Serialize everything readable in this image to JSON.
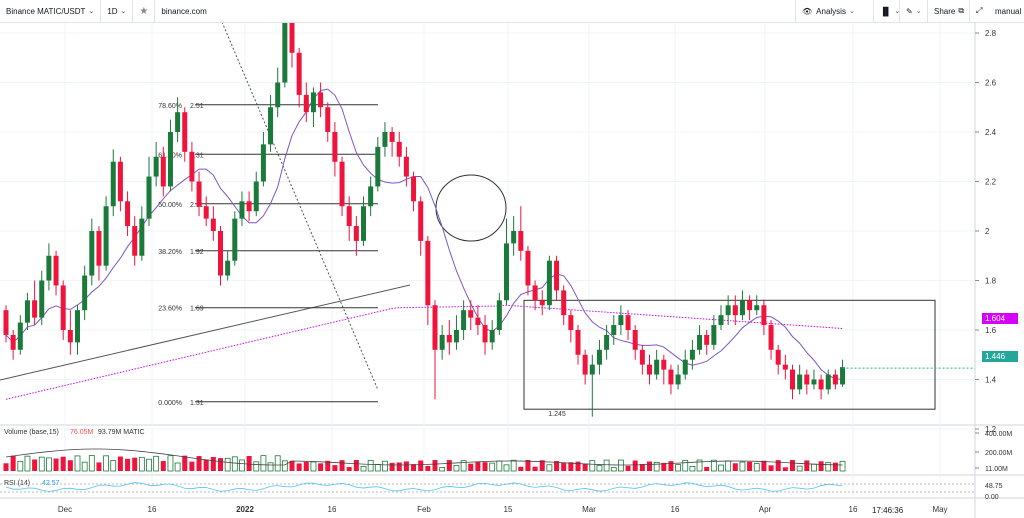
{
  "toolbar": {
    "symbol": "Binance MATIC/USDT",
    "interval": "1D",
    "star": "★",
    "domain": "binance.com",
    "analysis": "Analysis",
    "chart_type_icon": "candles",
    "draw_icon": "pencil",
    "share": "Share",
    "manual": "manual",
    "eye_icon": "👁",
    "expand_icon": "⤢"
  },
  "colors": {
    "up": "#26a69a",
    "down": "#ef5350",
    "up_dark": "#1b7a3a",
    "down_dark": "#f0143c",
    "sma": "#7e57c2",
    "sma_long": "#d500f9",
    "grid": "#f0f3fa",
    "fib_line": "#333333",
    "rsi": "#4fc3f7"
  },
  "chart_data": {
    "type": "line",
    "title": "Binance MATIC/USDT",
    "y_ticks": [
      "2.8",
      "2.6",
      "2.4",
      "2.2",
      "2",
      "1.8",
      "1.6",
      "1.4",
      "1.2"
    ],
    "x_ticks": [
      "Dec",
      "16",
      "2022",
      "16",
      "Feb",
      "15",
      "Mar",
      "16",
      "Apr",
      "16",
      "May"
    ],
    "fib_levels": [
      {
        "pct": "78.60%",
        "price": "2.51"
      },
      {
        "pct": "61.80%",
        "price": "2.31"
      },
      {
        "pct": "50.00%",
        "price": "2.11"
      },
      {
        "pct": "38.20%",
        "price": "1.92"
      },
      {
        "pct": "23.60%",
        "price": "1.69"
      },
      {
        "pct": "0.000%",
        "price": "1.31"
      }
    ],
    "low_label": "1.245",
    "last_price": "1.446",
    "sma_price": "1.604",
    "volume_label": "Volume (base,15)",
    "volume_val1": "76.05M",
    "volume_val2": "93.79M MATIC",
    "volume_ticks": [
      "400.00M",
      "200.00M",
      "11.00M"
    ],
    "rsi_label": "RSI (14)",
    "rsi_value": "42.57",
    "rsi_ticks": [
      "48.75",
      "0.00"
    ],
    "time": "17:46:36",
    "candles": [
      [
        1.68,
        1.58,
        1.7,
        1.55
      ],
      [
        1.58,
        1.52,
        1.6,
        1.48
      ],
      [
        1.52,
        1.63,
        1.66,
        1.5
      ],
      [
        1.63,
        1.72,
        1.75,
        1.6
      ],
      [
        1.72,
        1.65,
        1.8,
        1.62
      ],
      [
        1.65,
        1.8,
        1.84,
        1.62
      ],
      [
        1.8,
        1.9,
        1.95,
        1.76
      ],
      [
        1.9,
        1.78,
        1.92,
        1.74
      ],
      [
        1.78,
        1.6,
        1.8,
        1.56
      ],
      [
        1.6,
        1.55,
        1.68,
        1.5
      ],
      [
        1.55,
        1.68,
        1.7,
        1.5
      ],
      [
        1.68,
        1.82,
        1.86,
        1.64
      ],
      [
        1.82,
        2.0,
        2.05,
        1.78
      ],
      [
        2.0,
        1.86,
        2.02,
        1.8
      ],
      [
        1.86,
        2.1,
        2.14,
        1.84
      ],
      [
        2.1,
        2.28,
        2.33,
        2.06
      ],
      [
        2.28,
        2.12,
        2.3,
        2.08
      ],
      [
        2.12,
        2.02,
        2.16,
        1.98
      ],
      [
        2.02,
        1.9,
        2.06,
        1.86
      ],
      [
        1.9,
        2.05,
        2.1,
        1.88
      ],
      [
        2.05,
        2.22,
        2.3,
        2.02
      ],
      [
        2.22,
        2.3,
        2.36,
        2.18
      ],
      [
        2.3,
        2.18,
        2.34,
        2.14
      ],
      [
        2.18,
        2.4,
        2.45,
        2.16
      ],
      [
        2.4,
        2.48,
        2.54,
        2.36
      ],
      [
        2.48,
        2.32,
        2.5,
        2.28
      ],
      [
        2.32,
        2.2,
        2.36,
        2.16
      ],
      [
        2.2,
        2.1,
        2.24,
        2.06
      ],
      [
        2.1,
        2.05,
        2.14,
        2.02
      ],
      [
        2.05,
        2.0,
        2.1,
        1.96
      ],
      [
        2.0,
        1.82,
        2.02,
        1.78
      ],
      [
        1.82,
        1.88,
        1.92,
        1.8
      ],
      [
        1.88,
        2.05,
        2.08,
        1.86
      ],
      [
        2.05,
        2.12,
        2.16,
        2.02
      ],
      [
        2.12,
        2.08,
        2.16,
        2.04
      ],
      [
        2.08,
        2.2,
        2.24,
        2.06
      ],
      [
        2.2,
        2.35,
        2.4,
        2.18
      ],
      [
        2.35,
        2.5,
        2.55,
        2.32
      ],
      [
        2.5,
        2.6,
        2.66,
        2.46
      ],
      [
        2.6,
        2.85,
        2.9,
        2.58
      ],
      [
        2.85,
        2.72,
        2.88,
        2.66
      ],
      [
        2.72,
        2.55,
        2.74,
        2.5
      ],
      [
        2.55,
        2.48,
        2.6,
        2.44
      ],
      [
        2.48,
        2.56,
        2.58,
        2.42
      ],
      [
        2.56,
        2.5,
        2.6,
        2.46
      ],
      [
        2.5,
        2.4,
        2.52,
        2.36
      ],
      [
        2.4,
        2.28,
        2.44,
        2.22
      ],
      [
        2.28,
        2.1,
        2.3,
        2.06
      ],
      [
        2.1,
        2.02,
        2.14,
        1.96
      ],
      [
        2.02,
        1.96,
        2.06,
        1.9
      ],
      [
        1.96,
        2.1,
        2.14,
        1.94
      ],
      [
        2.1,
        2.18,
        2.22,
        2.06
      ],
      [
        2.18,
        2.34,
        2.38,
        2.16
      ],
      [
        2.34,
        2.4,
        2.44,
        2.3
      ],
      [
        2.4,
        2.36,
        2.42,
        2.3
      ],
      [
        2.36,
        2.3,
        2.4,
        2.26
      ],
      [
        2.3,
        2.22,
        2.34,
        2.18
      ],
      [
        2.22,
        2.12,
        2.24,
        2.08
      ],
      [
        2.12,
        1.96,
        2.14,
        1.9
      ],
      [
        1.96,
        1.7,
        1.98,
        1.62
      ],
      [
        1.7,
        1.52,
        1.72,
        1.32
      ],
      [
        1.52,
        1.58,
        1.62,
        1.48
      ],
      [
        1.58,
        1.55,
        1.64,
        1.5
      ],
      [
        1.55,
        1.6,
        1.66,
        1.52
      ],
      [
        1.6,
        1.68,
        1.72,
        1.56
      ],
      [
        1.68,
        1.65,
        1.72,
        1.6
      ],
      [
        1.65,
        1.62,
        1.7,
        1.58
      ],
      [
        1.62,
        1.55,
        1.66,
        1.5
      ],
      [
        1.55,
        1.6,
        1.64,
        1.52
      ],
      [
        1.6,
        1.72,
        1.75,
        1.58
      ],
      [
        1.72,
        1.95,
        2.05,
        1.7
      ],
      [
        1.95,
        2.0,
        2.06,
        1.9
      ],
      [
        2.0,
        1.92,
        2.1,
        1.88
      ],
      [
        1.92,
        1.78,
        1.94,
        1.74
      ],
      [
        1.78,
        1.72,
        1.8,
        1.68
      ],
      [
        1.72,
        1.7,
        1.76,
        1.66
      ],
      [
        1.7,
        1.88,
        1.9,
        1.68
      ],
      [
        1.88,
        1.76,
        1.9,
        1.72
      ],
      [
        1.76,
        1.66,
        1.78,
        1.62
      ],
      [
        1.66,
        1.6,
        1.68,
        1.55
      ],
      [
        1.6,
        1.5,
        1.62,
        1.46
      ],
      [
        1.5,
        1.42,
        1.52,
        1.38
      ],
      [
        1.42,
        1.46,
        1.5,
        1.25
      ],
      [
        1.46,
        1.52,
        1.56,
        1.42
      ],
      [
        1.52,
        1.58,
        1.62,
        1.48
      ],
      [
        1.58,
        1.62,
        1.66,
        1.54
      ],
      [
        1.62,
        1.66,
        1.7,
        1.58
      ],
      [
        1.66,
        1.6,
        1.68,
        1.56
      ],
      [
        1.6,
        1.52,
        1.62,
        1.48
      ],
      [
        1.52,
        1.46,
        1.54,
        1.42
      ],
      [
        1.46,
        1.42,
        1.5,
        1.38
      ],
      [
        1.42,
        1.48,
        1.52,
        1.4
      ],
      [
        1.48,
        1.44,
        1.5,
        1.38
      ],
      [
        1.44,
        1.38,
        1.46,
        1.34
      ],
      [
        1.38,
        1.42,
        1.46,
        1.36
      ],
      [
        1.42,
        1.48,
        1.52,
        1.4
      ],
      [
        1.48,
        1.52,
        1.56,
        1.44
      ],
      [
        1.52,
        1.58,
        1.62,
        1.5
      ],
      [
        1.58,
        1.54,
        1.6,
        1.5
      ],
      [
        1.54,
        1.62,
        1.66,
        1.52
      ],
      [
        1.62,
        1.66,
        1.7,
        1.6
      ],
      [
        1.66,
        1.7,
        1.74,
        1.62
      ],
      [
        1.7,
        1.66,
        1.74,
        1.62
      ],
      [
        1.66,
        1.72,
        1.76,
        1.64
      ],
      [
        1.72,
        1.68,
        1.74,
        1.64
      ],
      [
        1.68,
        1.7,
        1.74,
        1.66
      ],
      [
        1.7,
        1.62,
        1.72,
        1.58
      ],
      [
        1.62,
        1.52,
        1.64,
        1.48
      ],
      [
        1.52,
        1.46,
        1.54,
        1.42
      ],
      [
        1.46,
        1.44,
        1.5,
        1.4
      ],
      [
        1.44,
        1.36,
        1.46,
        1.32
      ],
      [
        1.36,
        1.42,
        1.46,
        1.34
      ],
      [
        1.42,
        1.38,
        1.44,
        1.34
      ],
      [
        1.38,
        1.4,
        1.44,
        1.36
      ],
      [
        1.4,
        1.36,
        1.42,
        1.32
      ],
      [
        1.36,
        1.42,
        1.44,
        1.34
      ],
      [
        1.42,
        1.38,
        1.44,
        1.36
      ],
      [
        1.38,
        1.45,
        1.48,
        1.37
      ]
    ]
  }
}
